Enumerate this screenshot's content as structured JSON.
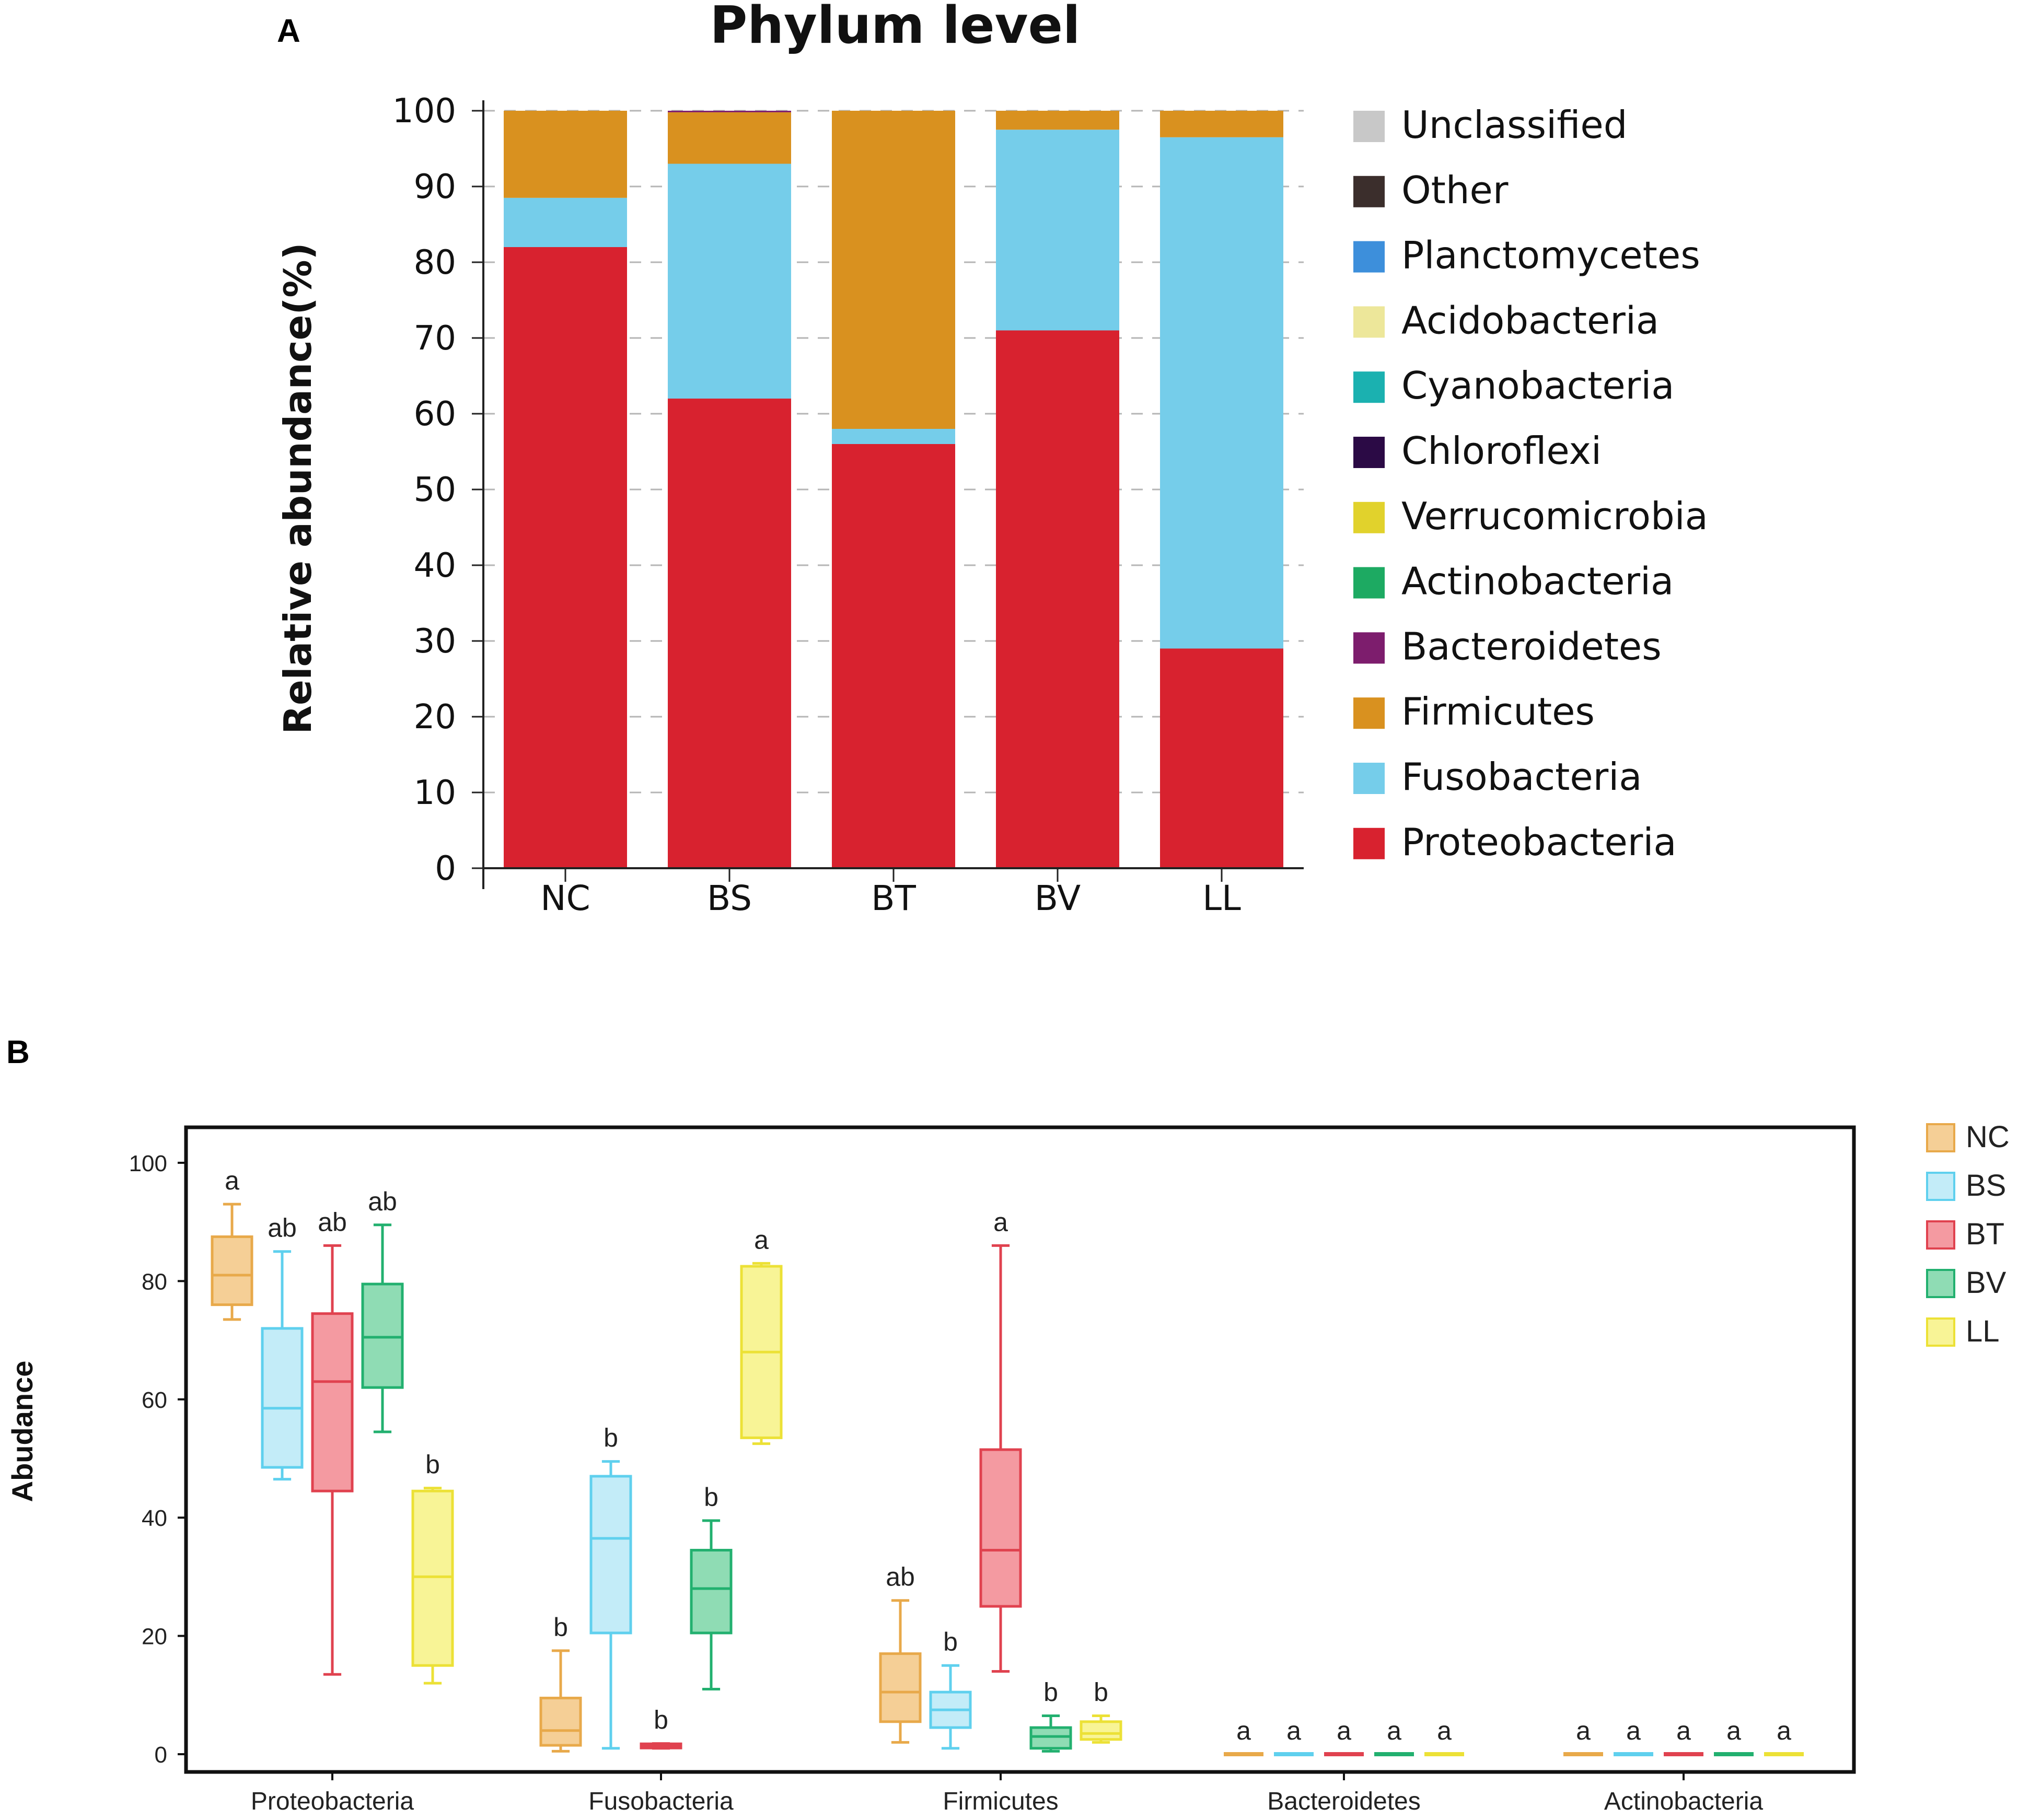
{
  "panels": {
    "a_label": "A",
    "b_label": "B"
  },
  "chart_data": [
    {
      "type": "bar",
      "stacked": true,
      "title": "Phylum level",
      "xlabel": "",
      "ylabel": "Relative abundance(%)",
      "ylim": [
        0,
        100
      ],
      "yticks": [
        0,
        10,
        20,
        30,
        40,
        50,
        60,
        70,
        80,
        90,
        100
      ],
      "grid": true,
      "legend_position": "right",
      "categories": [
        "NC",
        "BS",
        "BT",
        "BV",
        "LL"
      ],
      "legend": [
        "Unclassified",
        "Other",
        "Planctomycetes",
        "Acidobacteria",
        "Cyanobacteria",
        "Chloroflexi",
        "Verrucomicrobia",
        "Actinobacteria",
        "Bacteroidetes",
        "Firmicutes",
        "Fusobacteria",
        "Proteobacteria"
      ],
      "colors": {
        "Unclassified": "#c8c8c8",
        "Other": "#3b2e2c",
        "Planctomycetes": "#3d8fdb",
        "Acidobacteria": "#ede79a",
        "Cyanobacteria": "#1bb1b0",
        "Chloroflexi": "#2b0a45",
        "Verrucomicrobia": "#e1d22c",
        "Actinobacteria": "#1daa62",
        "Bacteroidetes": "#7d1d6d",
        "Firmicutes": "#d9911f",
        "Fusobacteria": "#75cdea",
        "Proteobacteria": "#d8222f"
      },
      "series": [
        {
          "name": "Proteobacteria",
          "values": [
            82,
            62,
            56,
            71,
            29
          ]
        },
        {
          "name": "Fusobacteria",
          "values": [
            6.5,
            31,
            2,
            26.5,
            67.5
          ]
        },
        {
          "name": "Firmicutes",
          "values": [
            11.5,
            6.8,
            42,
            2.5,
            3.5
          ]
        },
        {
          "name": "Bacteroidetes",
          "values": [
            0,
            0.2,
            0,
            0,
            0
          ]
        }
      ]
    },
    {
      "type": "box",
      "title": "",
      "xlabel": "",
      "ylabel": "Abudance",
      "ylim": [
        -3,
        106
      ],
      "yticks": [
        0,
        20,
        40,
        60,
        80,
        100
      ],
      "legend_position": "right",
      "groups": [
        "NC",
        "BS",
        "BT",
        "BV",
        "LL"
      ],
      "group_colors": {
        "NC": {
          "stroke": "#e8a94a",
          "fill": "#f5cf96"
        },
        "BS": {
          "stroke": "#5fd0ee",
          "fill": "#c3ecf8"
        },
        "BT": {
          "stroke": "#e0424f",
          "fill": "#f49aa1"
        },
        "BV": {
          "stroke": "#22b06f",
          "fill": "#8fdcb4"
        },
        "LL": {
          "stroke": "#ece136",
          "fill": "#f8f496"
        }
      },
      "categories": [
        {
          "name": "Proteobacteria",
          "boxes": [
            {
              "group": "NC",
              "min": 73.5,
              "q1": 76,
              "median": 81,
              "q3": 87.5,
              "max": 93,
              "letter": "a"
            },
            {
              "group": "BS",
              "min": 46.5,
              "q1": 48.5,
              "median": 58.5,
              "q3": 72,
              "max": 85,
              "letter": "ab"
            },
            {
              "group": "BT",
              "min": 13.5,
              "q1": 44.5,
              "median": 63,
              "q3": 74.5,
              "max": 86,
              "letter": "ab"
            },
            {
              "group": "BV",
              "min": 54.5,
              "q1": 62,
              "median": 70.5,
              "q3": 79.5,
              "max": 89.5,
              "letter": "ab"
            },
            {
              "group": "LL",
              "min": 12,
              "q1": 15,
              "median": 30,
              "q3": 44.5,
              "max": 45,
              "letter": "b"
            }
          ]
        },
        {
          "name": "Fusobacteria",
          "boxes": [
            {
              "group": "NC",
              "min": 0.5,
              "q1": 1.5,
              "median": 4,
              "q3": 9.5,
              "max": 17.5,
              "letter": "b"
            },
            {
              "group": "BS",
              "min": 1,
              "q1": 20.5,
              "median": 36.5,
              "q3": 47,
              "max": 49.5,
              "letter": "b"
            },
            {
              "group": "BT",
              "min": 1,
              "q1": 1.2,
              "median": 1.4,
              "q3": 1.6,
              "max": 1.8,
              "letter": "b"
            },
            {
              "group": "BV",
              "min": 11,
              "q1": 20.5,
              "median": 28,
              "q3": 34.5,
              "max": 39.5,
              "letter": "b"
            },
            {
              "group": "LL",
              "min": 52.5,
              "q1": 53.5,
              "median": 68,
              "q3": 82.5,
              "max": 83,
              "letter": "a"
            }
          ]
        },
        {
          "name": "Firmicutes",
          "boxes": [
            {
              "group": "NC",
              "min": 2,
              "q1": 5.5,
              "median": 10.5,
              "q3": 17,
              "max": 26,
              "letter": "ab"
            },
            {
              "group": "BS",
              "min": 1,
              "q1": 4.5,
              "median": 7.5,
              "q3": 10.5,
              "max": 15,
              "letter": "b"
            },
            {
              "group": "BT",
              "min": 14,
              "q1": 25,
              "median": 34.5,
              "q3": 51.5,
              "max": 86,
              "letter": "a"
            },
            {
              "group": "BV",
              "min": 0.5,
              "q1": 1,
              "median": 3,
              "q3": 4.5,
              "max": 6.5,
              "letter": "b"
            },
            {
              "group": "LL",
              "min": 2,
              "q1": 2.5,
              "median": 3.5,
              "q3": 5.5,
              "max": 6.5,
              "letter": "b"
            }
          ]
        },
        {
          "name": "Bacteroidetes",
          "boxes": [
            {
              "group": "NC",
              "min": 0,
              "q1": 0,
              "median": 0,
              "q3": 0,
              "max": 0,
              "letter": "a"
            },
            {
              "group": "BS",
              "min": 0,
              "q1": 0,
              "median": 0,
              "q3": 0,
              "max": 0,
              "letter": "a"
            },
            {
              "group": "BT",
              "min": 0,
              "q1": 0,
              "median": 0,
              "q3": 0,
              "max": 0,
              "letter": "a"
            },
            {
              "group": "BV",
              "min": 0,
              "q1": 0,
              "median": 0,
              "q3": 0,
              "max": 0,
              "letter": "a"
            },
            {
              "group": "LL",
              "min": 0,
              "q1": 0,
              "median": 0,
              "q3": 0,
              "max": 0,
              "letter": "a"
            }
          ]
        },
        {
          "name": "Actinobacteria",
          "boxes": [
            {
              "group": "NC",
              "min": 0,
              "q1": 0,
              "median": 0,
              "q3": 0,
              "max": 0,
              "letter": "a"
            },
            {
              "group": "BS",
              "min": 0,
              "q1": 0,
              "median": 0,
              "q3": 0,
              "max": 0,
              "letter": "a"
            },
            {
              "group": "BT",
              "min": 0,
              "q1": 0,
              "median": 0,
              "q3": 0,
              "max": 0,
              "letter": "a"
            },
            {
              "group": "BV",
              "min": 0,
              "q1": 0,
              "median": 0,
              "q3": 0,
              "max": 0,
              "letter": "a"
            },
            {
              "group": "LL",
              "min": 0,
              "q1": 0,
              "median": 0,
              "q3": 0,
              "max": 0,
              "letter": "a"
            }
          ]
        }
      ]
    }
  ]
}
